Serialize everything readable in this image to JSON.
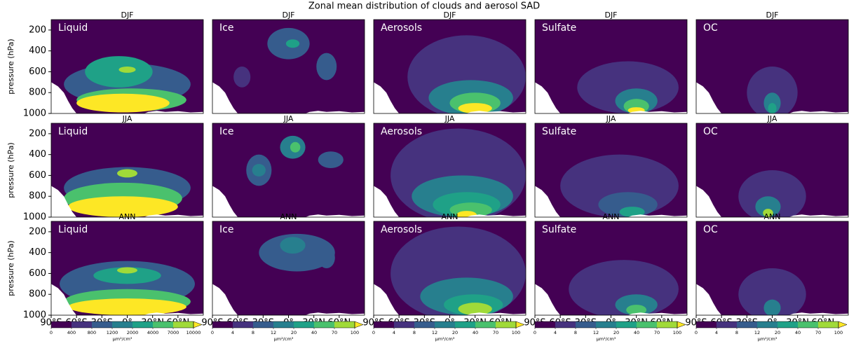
{
  "chart_data": {
    "type": "contour",
    "title": "Zonal mean distribution of clouds and aerosol SAD",
    "ylabel": "pressure (hPa)",
    "xlim": [
      -90,
      90
    ],
    "xticks": [
      {
        "value": -90,
        "label": "90°S"
      },
      {
        "value": -60,
        "label": "60°S"
      },
      {
        "value": -30,
        "label": "30°S"
      },
      {
        "value": 0,
        "label": "0°"
      },
      {
        "value": 30,
        "label": "30°N"
      },
      {
        "value": 60,
        "label": "60°N"
      }
    ],
    "ylim": [
      1000,
      100
    ],
    "yticks": [
      200,
      400,
      600,
      800,
      1000
    ],
    "seasons": [
      "DJF",
      "JJA",
      "ANN"
    ],
    "variables": [
      "Liquid",
      "Ice",
      "Aerosols",
      "Sulfate",
      "OC"
    ],
    "colors": [
      "#440154",
      "#46327e",
      "#365c8d",
      "#277f8e",
      "#1fa187",
      "#4ac16d",
      "#a0da39",
      "#fde725"
    ],
    "colorbars": [
      {
        "levels": [
          0,
          400,
          800,
          1200,
          2000,
          4000,
          7000,
          10000
        ],
        "unit": "μm²/cm³"
      },
      {
        "levels": [
          0,
          4,
          8,
          12,
          20,
          40,
          70,
          100
        ],
        "unit": "μm²/cm³"
      },
      {
        "levels": [
          0,
          4,
          8,
          12,
          20,
          40,
          70,
          100
        ],
        "unit": "μm²/cm³"
      },
      {
        "levels": [
          0,
          4,
          8,
          12,
          20,
          40,
          70,
          100
        ],
        "unit": "μm²/cm³"
      },
      {
        "levels": [
          0,
          4,
          8,
          12,
          20,
          40,
          70,
          100
        ],
        "unit": "μm²/cm³"
      }
    ],
    "fields": [
      [
        [
          [
            0,
            720,
            75,
            200,
            800
          ],
          [
            -10,
            600,
            40,
            150,
            2000
          ],
          [
            5,
            870,
            65,
            110,
            4000
          ],
          [
            -5,
            900,
            55,
            90,
            10000
          ],
          [
            0,
            580,
            10,
            30,
            7000
          ]
        ],
        [
          [
            0,
            330,
            25,
            150,
            8
          ],
          [
            5,
            330,
            8,
            40,
            20
          ],
          [
            45,
            550,
            12,
            130,
            8
          ],
          [
            -55,
            650,
            10,
            100,
            4
          ]
        ],
        [
          [
            20,
            650,
            70,
            400,
            4
          ],
          [
            25,
            850,
            50,
            170,
            12
          ],
          [
            30,
            900,
            30,
            100,
            40
          ],
          [
            30,
            950,
            20,
            50,
            100
          ]
        ],
        [
          [
            20,
            750,
            60,
            250,
            4
          ],
          [
            30,
            880,
            25,
            120,
            12
          ],
          [
            30,
            930,
            15,
            70,
            40
          ],
          [
            30,
            970,
            10,
            30,
            100
          ]
        ],
        [
          [
            0,
            800,
            30,
            250,
            4
          ],
          [
            0,
            900,
            10,
            100,
            12
          ],
          [
            0,
            950,
            5,
            50,
            20
          ]
        ]
      ],
      [
        [
          [
            0,
            720,
            75,
            200,
            800
          ],
          [
            -5,
            820,
            70,
            150,
            4000
          ],
          [
            -5,
            900,
            65,
            100,
            10000
          ],
          [
            0,
            580,
            12,
            40,
            7000
          ]
        ],
        [
          [
            5,
            330,
            15,
            110,
            12
          ],
          [
            8,
            330,
            6,
            50,
            40
          ],
          [
            -35,
            550,
            15,
            150,
            8
          ],
          [
            -35,
            550,
            8,
            60,
            12
          ],
          [
            50,
            450,
            15,
            80,
            8
          ]
        ],
        [
          [
            10,
            600,
            80,
            450,
            4
          ],
          [
            15,
            800,
            60,
            200,
            12
          ],
          [
            20,
            880,
            40,
            120,
            20
          ],
          [
            25,
            930,
            25,
            70,
            40
          ],
          [
            20,
            980,
            12,
            40,
            100
          ]
        ],
        [
          [
            10,
            700,
            70,
            300,
            4
          ],
          [
            20,
            880,
            35,
            120,
            8
          ],
          [
            25,
            950,
            15,
            50,
            20
          ]
        ],
        [
          [
            0,
            800,
            40,
            250,
            4
          ],
          [
            -5,
            900,
            15,
            100,
            12
          ],
          [
            -5,
            960,
            6,
            40,
            70
          ]
        ]
      ],
      [
        [
          [
            0,
            700,
            80,
            220,
            800
          ],
          [
            0,
            620,
            40,
            80,
            2000
          ],
          [
            0,
            870,
            75,
            120,
            4000
          ],
          [
            0,
            920,
            70,
            80,
            10000
          ],
          [
            0,
            570,
            12,
            30,
            7000
          ]
        ],
        [
          [
            10,
            400,
            45,
            180,
            8
          ],
          [
            5,
            330,
            15,
            80,
            12
          ],
          [
            45,
            450,
            10,
            100,
            8
          ]
        ],
        [
          [
            10,
            600,
            80,
            450,
            4
          ],
          [
            20,
            820,
            55,
            180,
            12
          ],
          [
            28,
            900,
            35,
            100,
            20
          ],
          [
            30,
            940,
            20,
            60,
            70
          ]
        ],
        [
          [
            15,
            750,
            65,
            280,
            4
          ],
          [
            30,
            900,
            25,
            100,
            12
          ],
          [
            30,
            950,
            12,
            50,
            40
          ]
        ],
        [
          [
            0,
            800,
            40,
            250,
            4
          ],
          [
            0,
            930,
            10,
            80,
            12
          ]
        ]
      ]
    ]
  }
}
